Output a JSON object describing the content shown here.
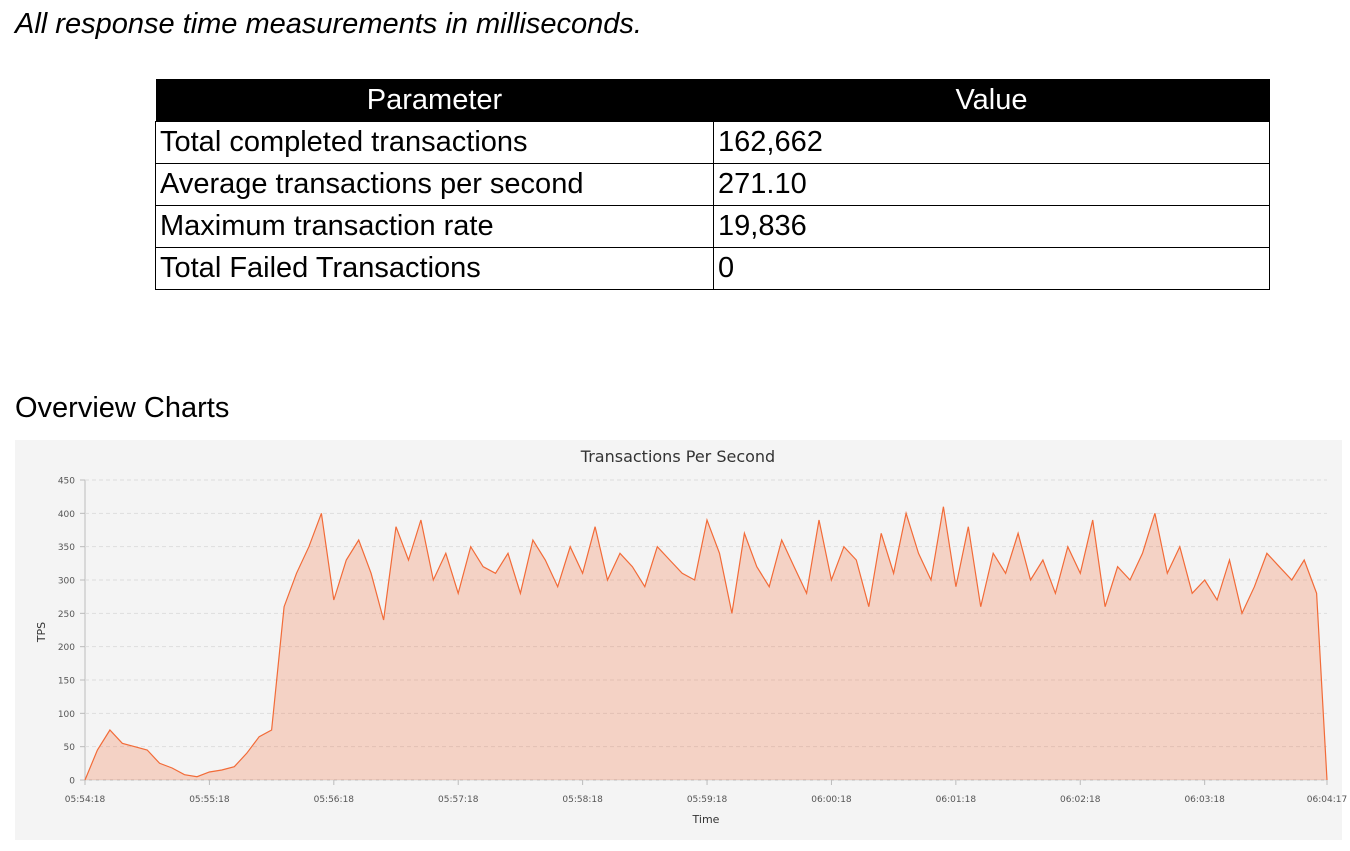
{
  "caption": "All response time measurements in milliseconds.",
  "table": {
    "header": [
      "Parameter",
      "Value"
    ],
    "rows": [
      [
        "Total completed transactions",
        "162,662"
      ],
      [
        "Average transactions per second",
        "271.10"
      ],
      [
        "Maximum transaction rate",
        "19,836"
      ],
      [
        "Total Failed Transactions",
        "0"
      ]
    ]
  },
  "section_title": "Overview Charts",
  "chart_data": {
    "type": "area",
    "title": "Transactions Per Second",
    "x_label": "Time",
    "y_label": "TPS",
    "color": "#f26b38",
    "grid": true,
    "x": [
      "05:54:18",
      "05:54:24",
      "05:54:30",
      "05:54:36",
      "05:54:42",
      "05:54:48",
      "05:54:54",
      "05:55:00",
      "05:55:06",
      "05:55:12",
      "05:55:18",
      "05:55:24",
      "05:55:30",
      "05:55:36",
      "05:55:42",
      "05:55:48",
      "05:55:54",
      "05:56:00",
      "05:56:06",
      "05:56:12",
      "05:56:18",
      "05:56:24",
      "05:56:30",
      "05:56:36",
      "05:56:42",
      "05:56:48",
      "05:56:54",
      "05:57:00",
      "05:57:06",
      "05:57:12",
      "05:57:18",
      "05:57:24",
      "05:57:30",
      "05:57:36",
      "05:57:42",
      "05:57:48",
      "05:57:54",
      "05:58:00",
      "05:58:06",
      "05:58:12",
      "05:58:18",
      "05:58:24",
      "05:58:30",
      "05:58:36",
      "05:58:42",
      "05:58:48",
      "05:58:54",
      "05:59:00",
      "05:59:06",
      "05:59:12",
      "05:59:18",
      "05:59:24",
      "05:59:30",
      "05:59:36",
      "05:59:42",
      "05:59:48",
      "05:59:54",
      "06:00:00",
      "06:00:06",
      "06:00:12",
      "06:00:18",
      "06:00:24",
      "06:00:30",
      "06:00:36",
      "06:00:42",
      "06:00:48",
      "06:00:54",
      "06:01:00",
      "06:01:06",
      "06:01:12",
      "06:01:18",
      "06:01:24",
      "06:01:30",
      "06:01:36",
      "06:01:42",
      "06:01:48",
      "06:01:54",
      "06:02:00",
      "06:02:06",
      "06:02:12",
      "06:02:18",
      "06:02:24",
      "06:02:30",
      "06:02:36",
      "06:02:42",
      "06:02:48",
      "06:02:54",
      "06:03:00",
      "06:03:06",
      "06:03:12",
      "06:03:18",
      "06:03:24",
      "06:03:30",
      "06:03:36",
      "06:03:42",
      "06:03:48",
      "06:03:54",
      "06:04:00",
      "06:04:06",
      "06:04:12",
      "06:04:17"
    ],
    "values": [
      0,
      45,
      75,
      55,
      50,
      45,
      25,
      18,
      8,
      5,
      12,
      15,
      20,
      40,
      65,
      75,
      260,
      310,
      350,
      400,
      270,
      330,
      360,
      310,
      240,
      380,
      330,
      390,
      300,
      340,
      280,
      350,
      320,
      310,
      340,
      280,
      360,
      330,
      290,
      350,
      310,
      380,
      300,
      340,
      320,
      290,
      350,
      330,
      310,
      300,
      390,
      340,
      250,
      370,
      320,
      290,
      360,
      320,
      280,
      390,
      300,
      350,
      330,
      260,
      370,
      310,
      400,
      340,
      300,
      410,
      290,
      380,
      260,
      340,
      310,
      370,
      300,
      330,
      280,
      350,
      310,
      390,
      260,
      320,
      300,
      340,
      400,
      310,
      350,
      280,
      300,
      270,
      330,
      250,
      290,
      340,
      320,
      300,
      330,
      280,
      0
    ],
    "xlim": [
      "05:54:18",
      "06:04:17"
    ],
    "xticks": [
      "05:54:18",
      "05:55:18",
      "05:56:18",
      "05:57:18",
      "05:58:18",
      "05:59:18",
      "06:00:18",
      "06:01:18",
      "06:02:18",
      "06:03:18",
      "06:04:17"
    ],
    "ylim": [
      0,
      450
    ],
    "yticks": [
      0,
      50,
      100,
      150,
      200,
      250,
      300,
      350,
      400,
      450
    ]
  }
}
